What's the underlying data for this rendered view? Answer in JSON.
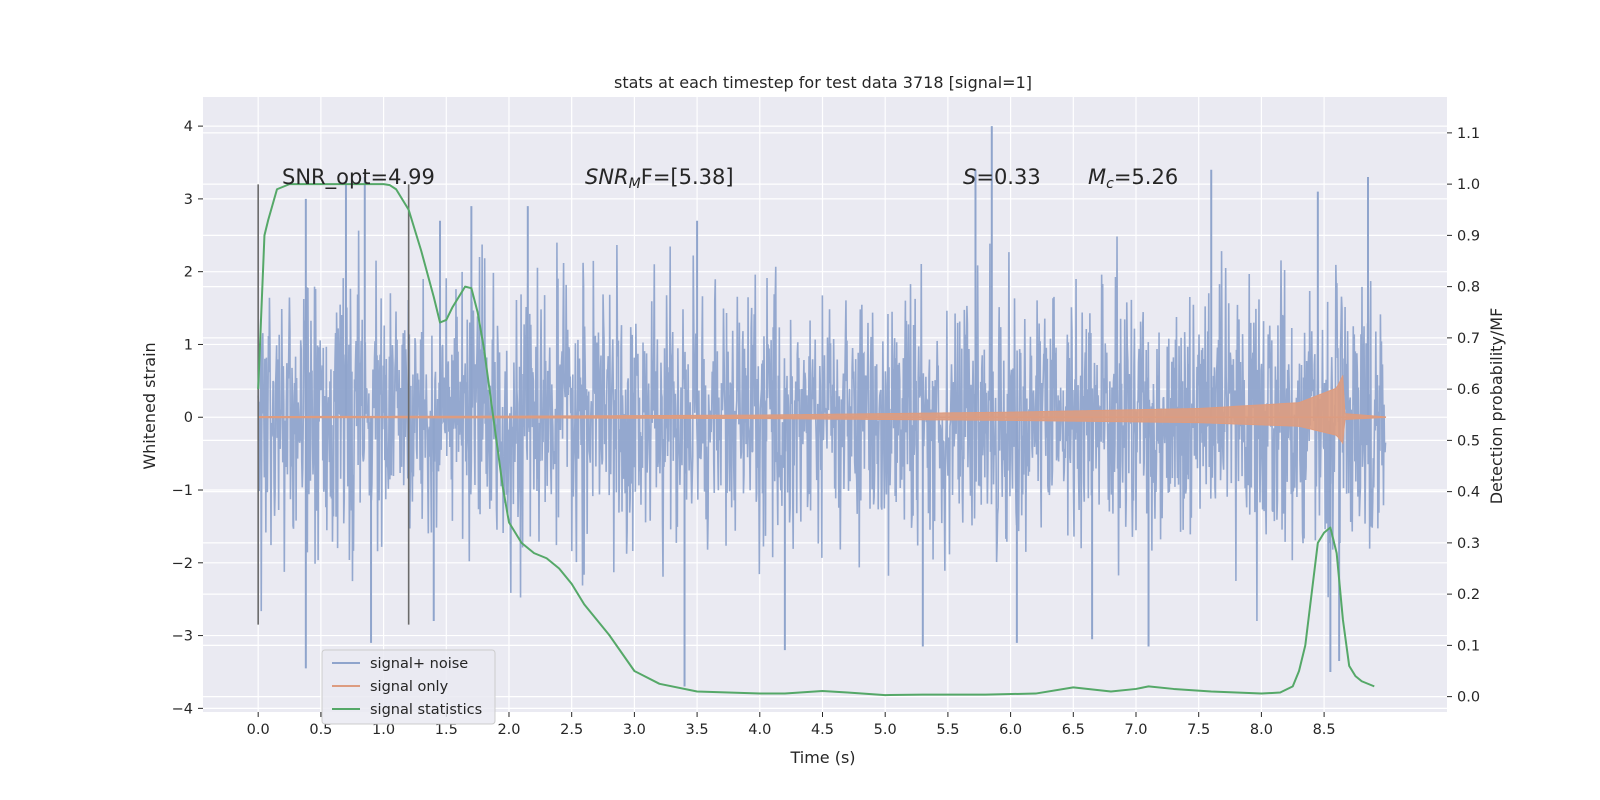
{
  "chart_data": {
    "type": "line",
    "title": "stats at each timestep for test data 3718 [signal=1]",
    "xlabel": "Time (s)",
    "ylabel": "Whitened strain",
    "y2label": "Detection probability/MF",
    "xlim": [
      -0.44,
      9.48
    ],
    "ylim": [
      -4.05,
      4.4
    ],
    "y2lim": [
      -0.03,
      1.17
    ],
    "grid": true,
    "x_ticks": [
      0.0,
      0.5,
      1.0,
      1.5,
      2.0,
      2.5,
      3.0,
      3.5,
      4.0,
      4.5,
      5.0,
      5.5,
      6.0,
      6.5,
      7.0,
      7.5,
      8.0,
      8.5
    ],
    "x_tick_labels": [
      "0.0",
      "0.5",
      "1.0",
      "1.5",
      "2.0",
      "2.5",
      "3.0",
      "3.5",
      "4.0",
      "4.5",
      "5.0",
      "5.5",
      "6.0",
      "6.5",
      "7.0",
      "7.5",
      "8.0",
      "8.5"
    ],
    "y_ticks": [
      4,
      3,
      2,
      1,
      0,
      -1,
      -2,
      -3,
      -4
    ],
    "y_tick_labels": [
      "4",
      "3",
      "2",
      "1",
      "0",
      "−1",
      "−2",
      "−3",
      "−4"
    ],
    "y2_ticks": [
      1.1,
      1.0,
      0.9,
      0.8,
      0.7,
      0.6,
      0.5,
      0.4,
      0.3,
      0.2,
      0.1,
      0.0
    ],
    "y2_tick_labels": [
      "1.1",
      "1.0",
      "0.9",
      "0.8",
      "0.7",
      "0.6",
      "0.5",
      "0.4",
      "0.3",
      "0.2",
      "0.1",
      "0.0"
    ],
    "vertical_lines": [
      {
        "x": 0.0,
        "y_range": [
          -2.85,
          3.2
        ]
      },
      {
        "x": 1.2,
        "y_range": [
          -2.85,
          3.2
        ]
      }
    ],
    "annotations": {
      "snr_opt": "SNR_opt=4.99",
      "snr_mf_main": "SNR",
      "snr_mf_sub": "M",
      "snr_mf_rest": "F=[5.38]",
      "s_main": "S",
      "s_rest": "=0.33",
      "mc_main": "M",
      "mc_sub": "c",
      "mc_rest": "=5.26"
    },
    "series": [
      {
        "name": "signal+ noise",
        "axis": "left",
        "color": "#8fa4cc",
        "description": "whitened noise, roughly gaussian with std ~0.9",
        "x_range": [
          0.0,
          8.99
        ],
        "peaks_high": [
          [
            0.38,
            3.0
          ],
          [
            0.7,
            3.25
          ],
          [
            0.85,
            3.3
          ],
          [
            1.45,
            2.7
          ],
          [
            1.7,
            2.9
          ],
          [
            2.15,
            2.9
          ],
          [
            3.5,
            2.7
          ],
          [
            5.85,
            4.0
          ],
          [
            5.72,
            3.4
          ],
          [
            7.6,
            3.4
          ],
          [
            8.45,
            3.1
          ],
          [
            8.85,
            3.3
          ]
        ],
        "peaks_low": [
          [
            0.38,
            -3.45
          ],
          [
            0.9,
            -3.1
          ],
          [
            1.4,
            -2.8
          ],
          [
            3.4,
            -3.7
          ],
          [
            4.2,
            -3.2
          ],
          [
            5.3,
            -3.15
          ],
          [
            6.05,
            -3.1
          ],
          [
            6.65,
            -3.05
          ],
          [
            7.1,
            -3.15
          ],
          [
            8.55,
            -3.5
          ],
          [
            8.62,
            -3.35
          ]
        ]
      },
      {
        "name": "signal only",
        "axis": "left",
        "color": "#dd9c80",
        "description": "inspiral chirp growing in amplitude until merger",
        "amplitude_points": [
          [
            0.0,
            0.01
          ],
          [
            2.0,
            0.015
          ],
          [
            4.0,
            0.03
          ],
          [
            6.0,
            0.07
          ],
          [
            7.5,
            0.12
          ],
          [
            8.3,
            0.2
          ],
          [
            8.6,
            0.4
          ],
          [
            8.65,
            0.58
          ],
          [
            8.66,
            0.05
          ],
          [
            8.99,
            0.005
          ]
        ]
      },
      {
        "name": "signal statistics",
        "axis": "right",
        "color": "#55a868",
        "x": [
          0.0,
          0.05,
          0.08,
          0.15,
          0.25,
          0.4,
          0.6,
          0.8,
          1.0,
          1.05,
          1.1,
          1.2,
          1.3,
          1.4,
          1.45,
          1.5,
          1.55,
          1.6,
          1.65,
          1.7,
          1.75,
          1.8,
          1.85,
          1.9,
          1.95,
          2.0,
          2.05,
          2.1,
          2.15,
          2.2,
          2.3,
          2.4,
          2.5,
          2.6,
          2.8,
          3.0,
          3.2,
          3.5,
          4.0,
          4.2,
          4.5,
          4.7,
          5.0,
          5.3,
          5.8,
          6.2,
          6.5,
          6.8,
          7.0,
          7.1,
          7.3,
          7.6,
          8.0,
          8.15,
          8.25,
          8.3,
          8.35,
          8.4,
          8.45,
          8.5,
          8.55,
          8.6,
          8.65,
          8.7,
          8.75,
          8.8,
          8.9
        ],
        "values": [
          0.6,
          0.9,
          0.93,
          0.99,
          1.0,
          1.0,
          1.0,
          1.0,
          1.0,
          0.998,
          0.99,
          0.95,
          0.87,
          0.78,
          0.73,
          0.735,
          0.76,
          0.78,
          0.8,
          0.797,
          0.75,
          0.68,
          0.59,
          0.5,
          0.41,
          0.34,
          0.32,
          0.3,
          0.29,
          0.28,
          0.27,
          0.25,
          0.22,
          0.18,
          0.12,
          0.05,
          0.025,
          0.01,
          0.006,
          0.006,
          0.011,
          0.008,
          0.003,
          0.004,
          0.004,
          0.006,
          0.018,
          0.01,
          0.015,
          0.02,
          0.015,
          0.01,
          0.006,
          0.008,
          0.02,
          0.05,
          0.1,
          0.2,
          0.3,
          0.32,
          0.33,
          0.28,
          0.15,
          0.06,
          0.04,
          0.03,
          0.02
        ]
      }
    ],
    "legend": {
      "location": "lower-left",
      "entries": [
        "signal+ noise",
        "signal only",
        "signal statistics"
      ]
    }
  },
  "colors": {
    "plot_background": "#eaeaf2",
    "grid": "#ffffff",
    "noise": "#8fa4cc",
    "signal": "#dd9c80",
    "stats": "#55a868",
    "vline": "#6b6b6b"
  }
}
